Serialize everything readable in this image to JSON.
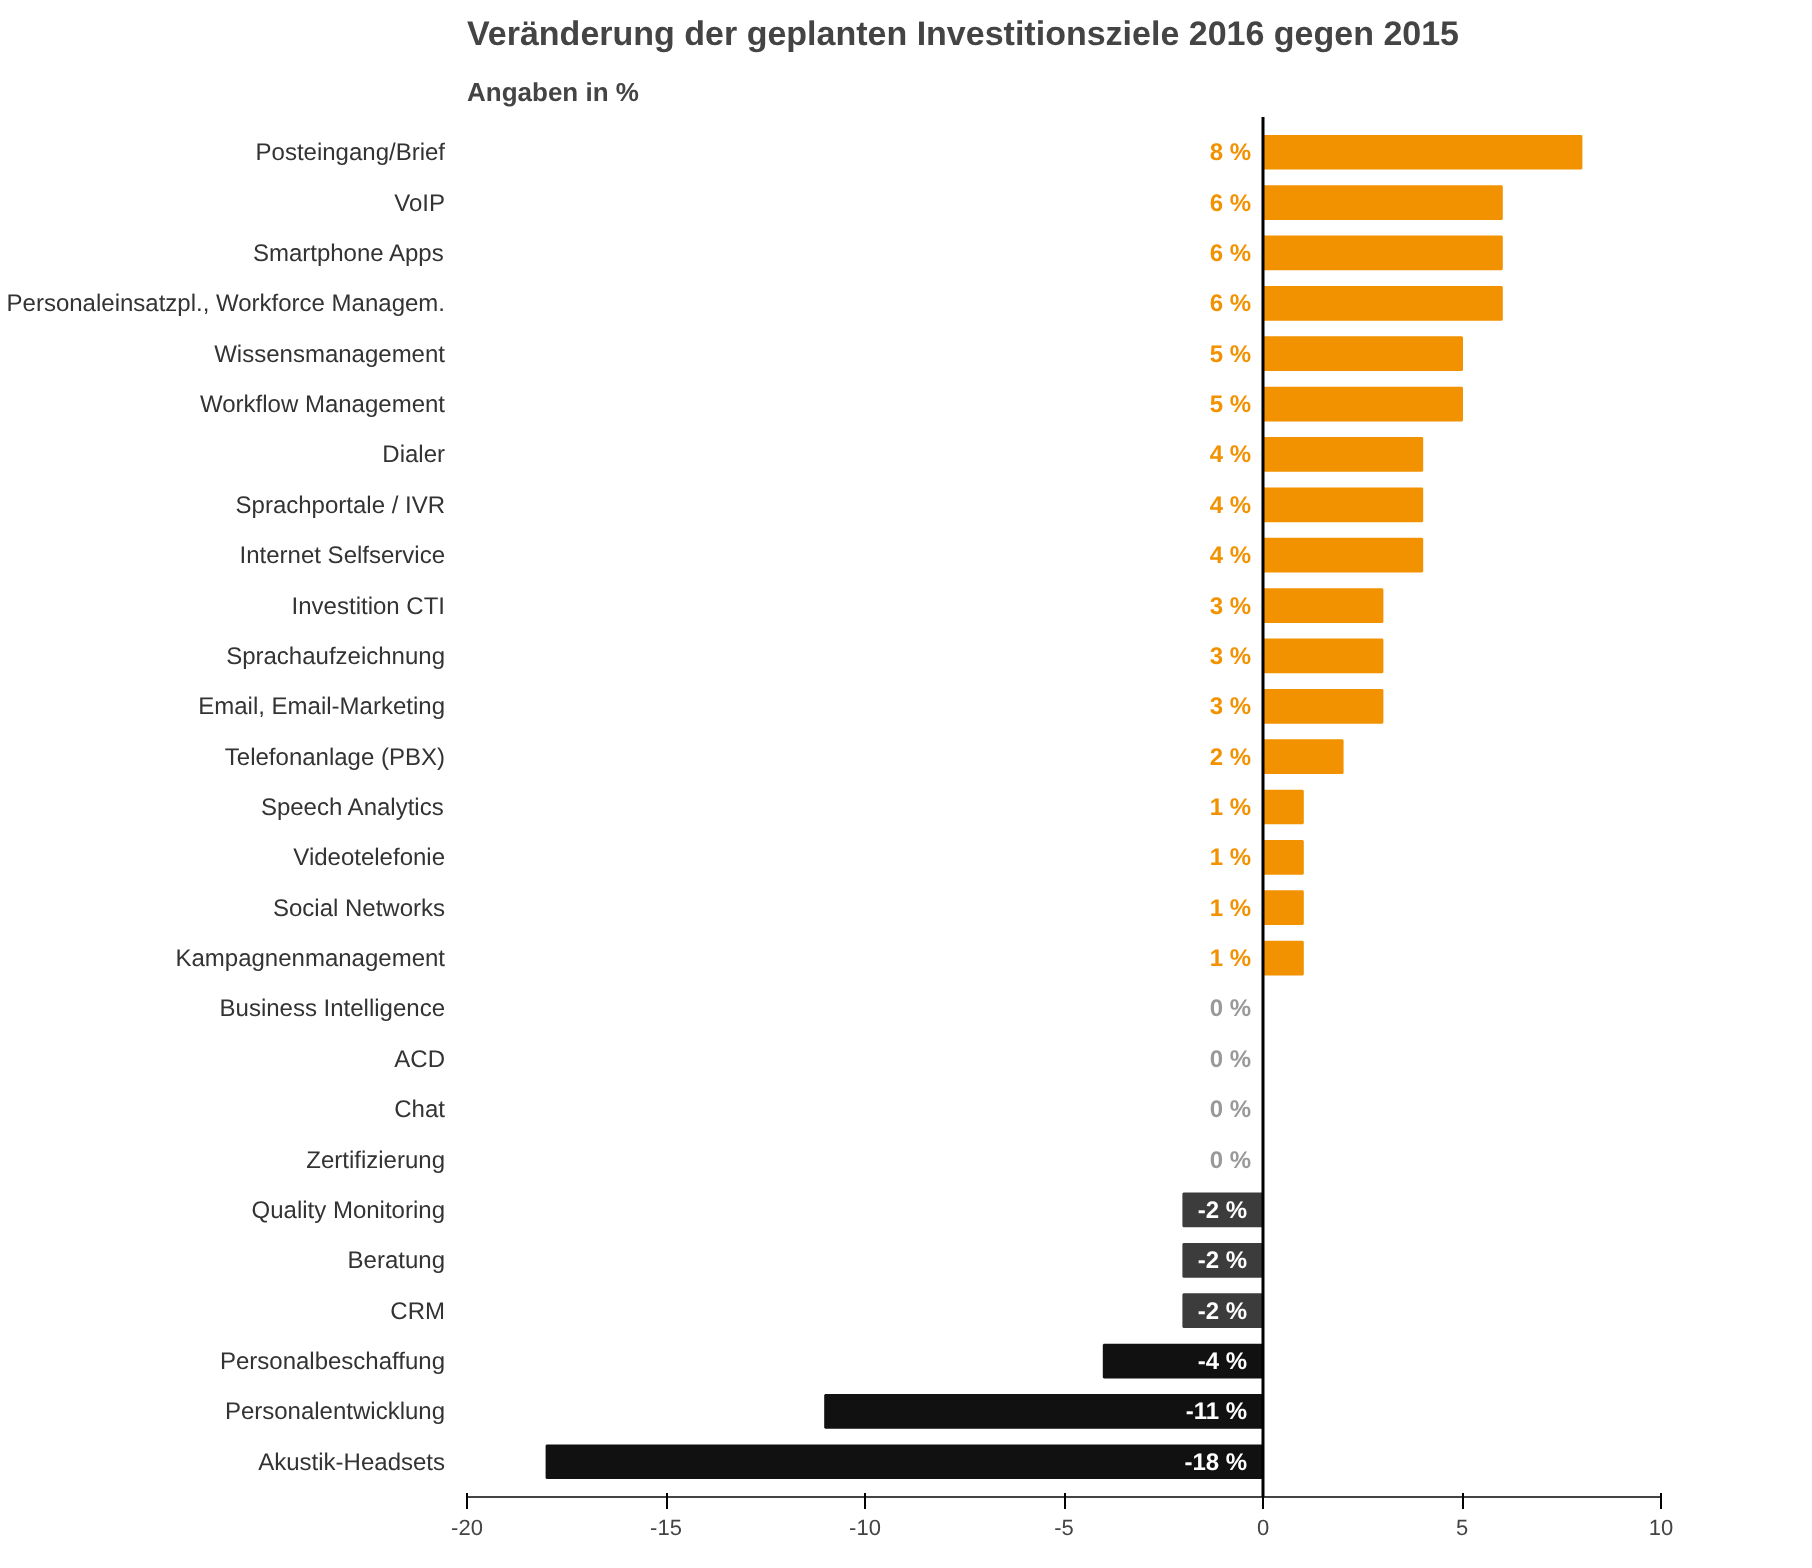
{
  "chart_data": {
    "type": "bar",
    "orientation": "horizontal",
    "title": "Veränderung der geplanten Investitionsziele 2016 gegen 2015",
    "subtitle": "Angaben in %",
    "categories": [
      "Posteingang/Brief",
      "VoIP",
      "Smartphone Apps",
      "Personaleinsatzpl., Workforce Managem.",
      "Wissensmanagement",
      "Workflow Management",
      "Dialer",
      "Sprachportale / IVR",
      "Internet Selfservice",
      "Investition CTI",
      "Sprachaufzeichnung",
      "Email, Email-Marketing",
      "Telefonanlage (PBX)",
      "Speech Analytics",
      "Videotelefonie",
      "Social Networks",
      "Kampagnenmanagement",
      "Business Intelligence",
      "ACD",
      "Chat",
      "Zertifizierung",
      "Quality Monitoring",
      "Beratung",
      "CRM",
      "Personalbeschaffung",
      "Personalentwicklung",
      "Akustik-Headsets"
    ],
    "values": [
      8,
      6,
      6,
      6,
      5,
      5,
      4,
      4,
      4,
      3,
      3,
      3,
      2,
      1,
      1,
      1,
      1,
      0,
      0,
      0,
      0,
      -2,
      -2,
      -2,
      -4,
      -11,
      -18
    ],
    "colors": [
      "#f39200",
      "#f39200",
      "#f39200",
      "#f39200",
      "#f39200",
      "#f39200",
      "#f39200",
      "#f39200",
      "#f39200",
      "#f39200",
      "#f39200",
      "#f39200",
      "#f39200",
      "#f39200",
      "#f39200",
      "#f39200",
      "#f39200",
      "#999999",
      "#999999",
      "#999999",
      "#999999",
      "#3c3c3c",
      "#3c3c3c",
      "#3c3c3c",
      "#111111",
      "#111111",
      "#111111"
    ],
    "value_labels": [
      "8 %",
      "6 %",
      "6 %",
      "6 %",
      "5 %",
      "5 %",
      "4 %",
      "4 %",
      "4 %",
      "3 %",
      "3 %",
      "3 %",
      "2 %",
      "1 %",
      "1 %",
      "1 %",
      "1 %",
      "0 %",
      "0 %",
      "0 %",
      "0 %",
      "-2 %",
      "-2 %",
      "-2 %",
      "-4 %",
      "-11 %",
      "-18 %"
    ],
    "xlim": [
      -20,
      10
    ],
    "xticks": [
      -20,
      -15,
      -10,
      -5,
      0,
      5,
      10
    ],
    "grid": false,
    "ref_lines": [
      {
        "axis": "x",
        "value": 0,
        "color": "#000000"
      }
    ]
  }
}
